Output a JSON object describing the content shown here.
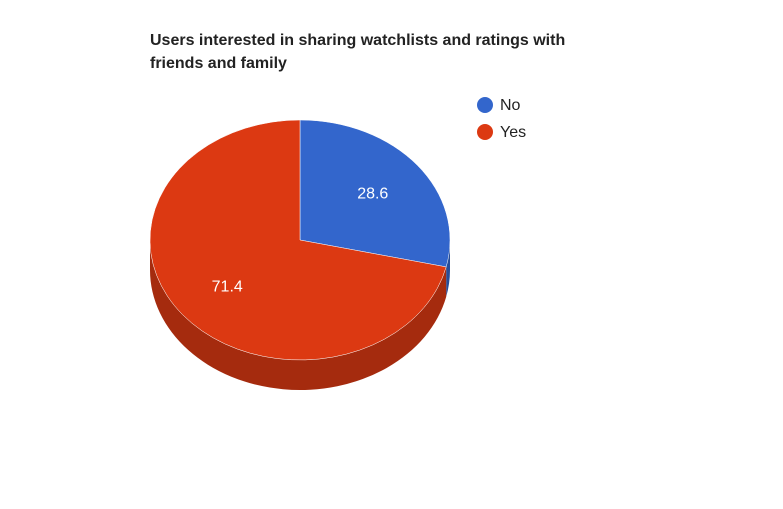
{
  "chart_data": {
    "type": "pie",
    "three_d": true,
    "title_lines": [
      "Users interested in sharing watchlists and ratings with",
      "friends and family"
    ],
    "categories": [
      "No",
      "Yes"
    ],
    "values": [
      28.6,
      71.4
    ],
    "labels": [
      "28.6",
      "71.4"
    ],
    "colors": [
      "#3366cc",
      "#dc3912"
    ],
    "side_colors": [
      "#264d99",
      "#a52b0e"
    ],
    "legend_position": "right"
  }
}
